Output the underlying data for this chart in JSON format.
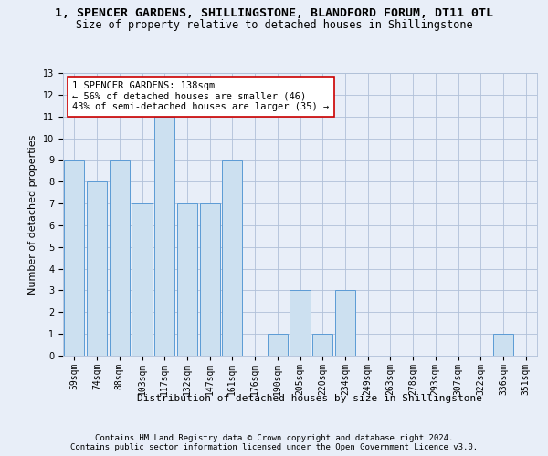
{
  "title_line1": "1, SPENCER GARDENS, SHILLINGSTONE, BLANDFORD FORUM, DT11 0TL",
  "title_line2": "Size of property relative to detached houses in Shillingstone",
  "xlabel": "Distribution of detached houses by size in Shillingstone",
  "ylabel": "Number of detached properties",
  "categories": [
    "59sqm",
    "74sqm",
    "88sqm",
    "103sqm",
    "117sqm",
    "132sqm",
    "147sqm",
    "161sqm",
    "176sqm",
    "190sqm",
    "205sqm",
    "220sqm",
    "234sqm",
    "249sqm",
    "263sqm",
    "278sqm",
    "293sqm",
    "307sqm",
    "322sqm",
    "336sqm",
    "351sqm"
  ],
  "values": [
    9,
    8,
    9,
    7,
    11,
    7,
    7,
    9,
    0,
    1,
    3,
    1,
    3,
    0,
    0,
    0,
    0,
    0,
    0,
    1,
    0
  ],
  "bar_color": "#cce0f0",
  "bar_edge_color": "#5b9bd5",
  "annotation_box_text": "1 SPENCER GARDENS: 138sqm\n← 56% of detached houses are smaller (46)\n43% of semi-detached houses are larger (35) →",
  "annotation_box_color": "white",
  "annotation_box_edge_color": "#cc0000",
  "ylim": [
    0,
    13
  ],
  "yticks": [
    0,
    1,
    2,
    3,
    4,
    5,
    6,
    7,
    8,
    9,
    10,
    11,
    12,
    13
  ],
  "footer_line1": "Contains HM Land Registry data © Crown copyright and database right 2024.",
  "footer_line2": "Contains public sector information licensed under the Open Government Licence v3.0.",
  "bg_color": "#e8eef8",
  "grid_color": "#b0c0d8",
  "title_fontsize": 9.5,
  "subtitle_fontsize": 8.5,
  "xlabel_fontsize": 8,
  "ylabel_fontsize": 8,
  "tick_fontsize": 7,
  "annot_fontsize": 7.5,
  "footer_fontsize": 6.5
}
